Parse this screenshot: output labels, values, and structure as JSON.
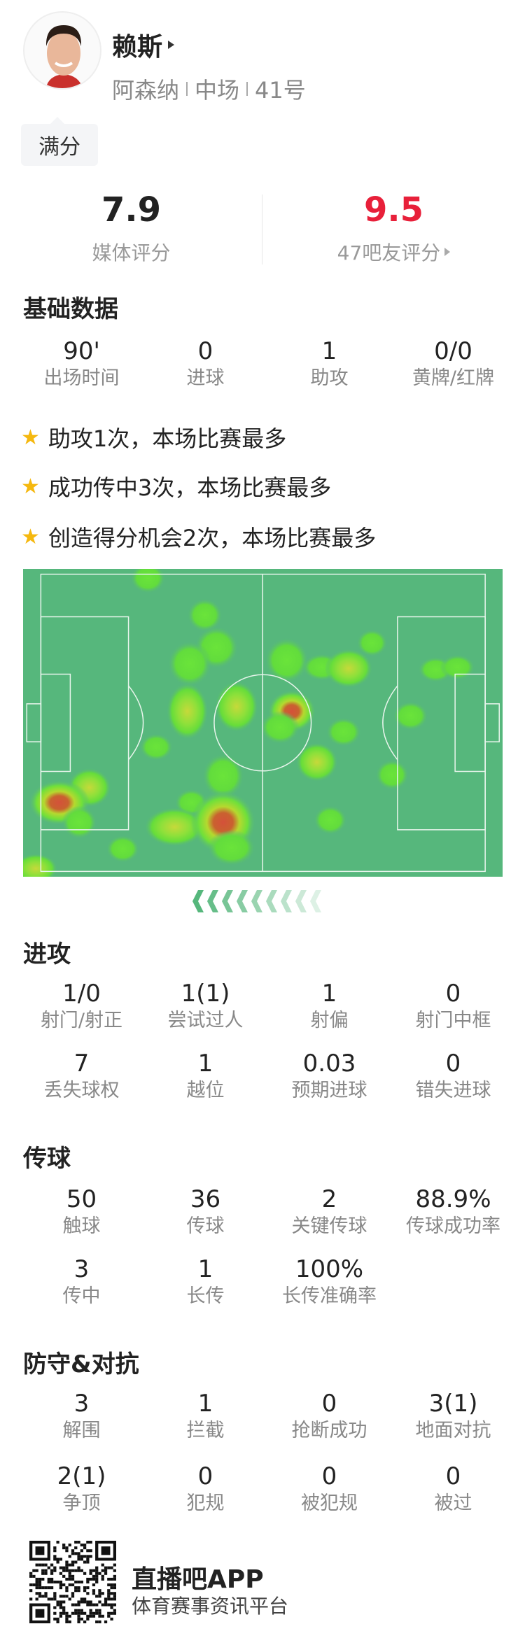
{
  "player": {
    "name": "赖斯",
    "team": "阿森纳",
    "position": "中场",
    "number": "41号",
    "tag": "满分"
  },
  "ratings": {
    "media": {
      "value": "7.9",
      "label": "媒体评分"
    },
    "fans": {
      "value": "9.5",
      "label": "47吧友评分"
    }
  },
  "colors": {
    "fan_rating": "#e8203a",
    "pitch": "#56b77c",
    "star": "#f5b80f"
  },
  "basic": {
    "title": "基础数据",
    "items": [
      {
        "value": "90'",
        "label": "出场时间"
      },
      {
        "value": "0",
        "label": "进球"
      },
      {
        "value": "1",
        "label": "助攻"
      },
      {
        "value": "0/0",
        "label": "黄牌/红牌"
      }
    ]
  },
  "highlights": [
    "助攻1次，本场比赛最多",
    "成功传中3次，本场比赛最多",
    "创造得分机会2次，本场比赛最多"
  ],
  "attack": {
    "title": "进攻",
    "items": [
      {
        "value": "1/0",
        "label": "射门/射正"
      },
      {
        "value": "1(1)",
        "label": "尝试过人"
      },
      {
        "value": "1",
        "label": "射偏"
      },
      {
        "value": "0",
        "label": "射门中框"
      },
      {
        "value": "7",
        "label": "丢失球权"
      },
      {
        "value": "1",
        "label": "越位"
      },
      {
        "value": "0.03",
        "label": "预期进球"
      },
      {
        "value": "0",
        "label": "错失进球"
      }
    ]
  },
  "passing": {
    "title": "传球",
    "items": [
      {
        "value": "50",
        "label": "触球"
      },
      {
        "value": "36",
        "label": "传球"
      },
      {
        "value": "2",
        "label": "关键传球"
      },
      {
        "value": "88.9%",
        "label": "传球成功率"
      },
      {
        "value": "3",
        "label": "传中"
      },
      {
        "value": "1",
        "label": "长传"
      },
      {
        "value": "100%",
        "label": "长传准确率"
      }
    ]
  },
  "defense": {
    "title": "防守&对抗",
    "items": [
      {
        "value": "3",
        "label": "解围"
      },
      {
        "value": "1",
        "label": "拦截"
      },
      {
        "value": "0",
        "label": "抢断成功"
      },
      {
        "value": "3(1)",
        "label": "地面对抗"
      },
      {
        "value": "2(1)",
        "label": "争顶"
      },
      {
        "value": "0",
        "label": "犯规"
      },
      {
        "value": "0",
        "label": "被犯规"
      },
      {
        "value": "0",
        "label": "被过"
      }
    ]
  },
  "footer": {
    "app_name": "直播吧APP",
    "slogan": "体育赛事资讯平台"
  }
}
